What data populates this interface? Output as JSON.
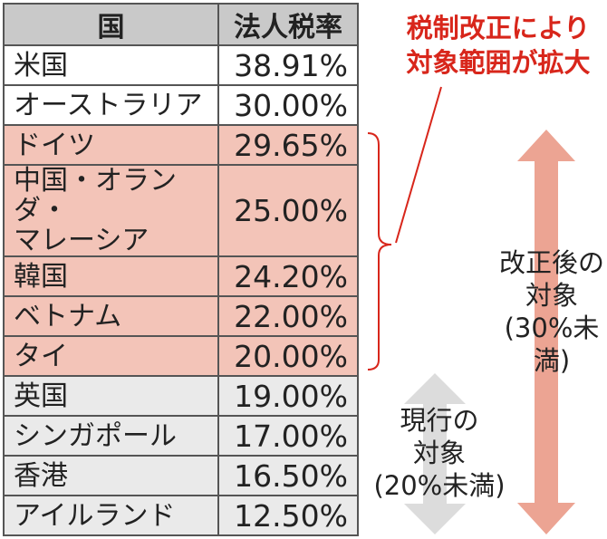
{
  "chart_data": {
    "type": "table",
    "columns": [
      "国",
      "法人税率"
    ],
    "rows": [
      {
        "country": "米国",
        "rate_text": "38.91%",
        "rate": 38.91,
        "category": "none"
      },
      {
        "country": "オーストラリア",
        "rate_text": "30.00%",
        "rate": 30.0,
        "category": "none"
      },
      {
        "country": "ドイツ",
        "rate_text": "29.65%",
        "rate": 29.65,
        "category": "expanded"
      },
      {
        "country": "中国・オランダ・マレーシア",
        "rate_text": "25.00%",
        "rate": 25.0,
        "category": "expanded"
      },
      {
        "country": "韓国",
        "rate_text": "24.20%",
        "rate": 24.2,
        "category": "expanded"
      },
      {
        "country": "ベトナム",
        "rate_text": "22.00%",
        "rate": 22.0,
        "category": "expanded"
      },
      {
        "country": "タイ",
        "rate_text": "20.00%",
        "rate": 20.0,
        "category": "expanded"
      },
      {
        "country": "英国",
        "rate_text": "19.00%",
        "rate": 19.0,
        "category": "current"
      },
      {
        "country": "シンガポール",
        "rate_text": "17.00%",
        "rate": 17.0,
        "category": "current"
      },
      {
        "country": "香港",
        "rate_text": "16.50%",
        "rate": 16.5,
        "category": "current"
      },
      {
        "country": "アイルランド",
        "rate_text": "12.50%",
        "rate": 12.5,
        "category": "current"
      }
    ],
    "annotations": {
      "expanded": "税制改正により 対象範囲が拡大",
      "after_reform": "改正後の 対象 (30%未満)",
      "current": "現行の 対象 (20%未満)"
    }
  },
  "colors": {
    "expanded_fill": "#f3c4b8",
    "current_fill": "#eaeaea",
    "header_fill": "#c9c9c9",
    "annotation_red": "#d8261b",
    "after_arrow": "#eca493",
    "current_arrow": "#dcdcdc"
  }
}
